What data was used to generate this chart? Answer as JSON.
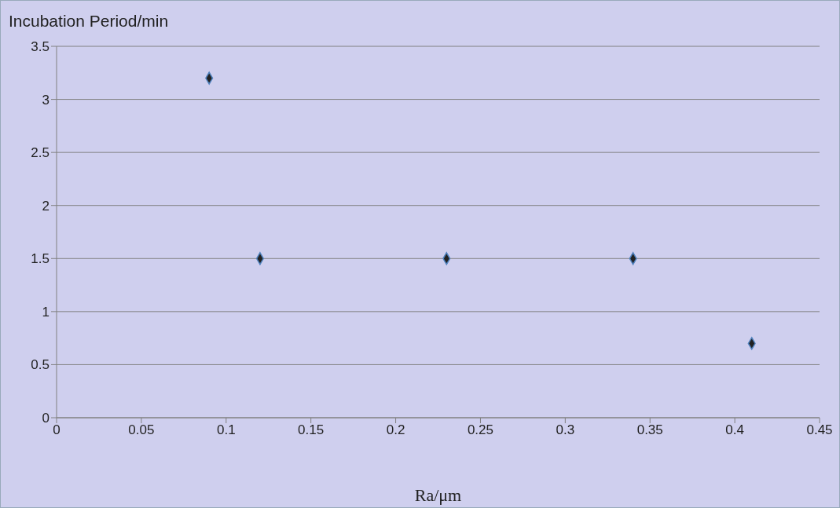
{
  "chart_data": {
    "type": "scatter",
    "xlabel": "Ra/μm",
    "ylabel": "Incubation Period/min",
    "x": [
      0.09,
      0.12,
      0.23,
      0.34,
      0.41
    ],
    "values": [
      3.2,
      1.5,
      1.5,
      1.5,
      0.7
    ],
    "color": "#222222",
    "xlim": [
      0,
      0.45
    ],
    "xticks": [
      0,
      0.05,
      0.1,
      0.15,
      0.2,
      0.25,
      0.3,
      0.35,
      0.4,
      0.45
    ],
    "ylim": [
      0,
      3.5
    ],
    "yticks": [
      0,
      0.5,
      1,
      1.5,
      2,
      2.5,
      3,
      3.5
    ],
    "grid": "y",
    "legend": false,
    "marker": "diamond"
  }
}
